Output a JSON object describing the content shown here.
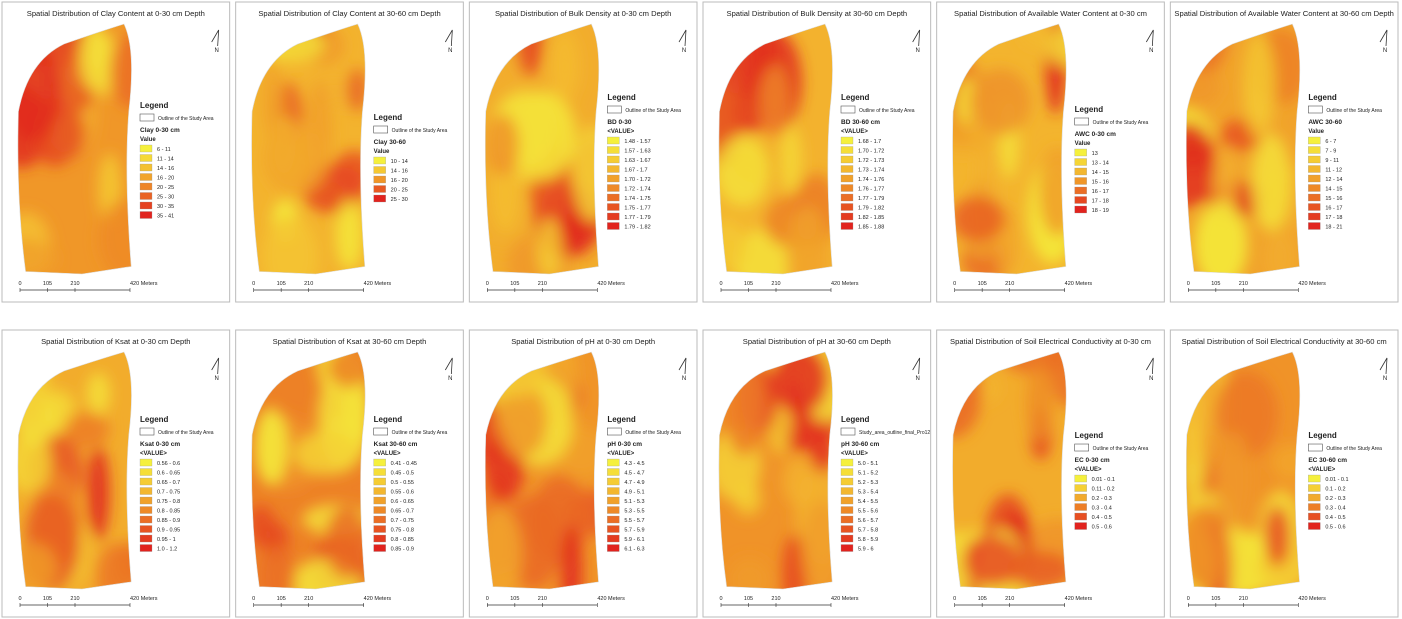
{
  "legend_heading": "Legend",
  "north_label": "N",
  "scale_labels": [
    "0",
    "105",
    "210",
    "420 Meters"
  ],
  "panels": [
    {
      "title": "Spatial Distribution of Clay Content at 0-30 cm Depth",
      "outline_label": "Outline of the Study Area",
      "layer": "Clay 0-30 cm",
      "value_header": "Value",
      "classes": [
        "6 - 11",
        "11 - 14",
        "14 - 16",
        "16 - 20",
        "20 - 25",
        "25 - 30",
        "30 - 35",
        "35 - 41"
      ]
    },
    {
      "title": "Spatial Distribution of Clay Content at 30-60 cm Depth",
      "outline_label": "Outline of the Study Area",
      "layer": "Clay 30-60",
      "value_header": "Value",
      "classes": [
        "10 - 14",
        "14 - 16",
        "16 - 20",
        "20 - 25",
        "25 - 30"
      ]
    },
    {
      "title": "Spatial Distribution of Bulk Density at 0-30 cm Depth",
      "outline_label": "Outline of the Study Area",
      "layer": "BD 0-30",
      "value_header": "<VALUE>",
      "classes": [
        "1.48 - 1.57",
        "1.57 - 1.63",
        "1.63 - 1.67",
        "1.67 - 1.7",
        "1.70 - 1.72",
        "1.72 - 1.74",
        "1.74 - 1.75",
        "1.75 - 1.77",
        "1.77 - 1.79",
        "1.79 - 1.82"
      ]
    },
    {
      "title": "Spatial Distribution of Bulk Density at 30-60 cm Depth",
      "outline_label": "Outline of the Study Area",
      "layer": "BD 30-60 cm",
      "value_header": "<VALUE>",
      "classes": [
        "1.68 - 1.7",
        "1.70 - 1.72",
        "1.72 - 1.73",
        "1.73 - 1.74",
        "1.74 - 1.76",
        "1.76 - 1.77",
        "1.77 - 1.79",
        "1.79 - 1.82",
        "1.82 - 1.85",
        "1.85 - 1.88"
      ]
    },
    {
      "title": "Spatial Distribution of Available Water Content at 0-30 cm",
      "outline_label": "Outline of the Study Area",
      "layer": "AWC 0-30 cm",
      "value_header": "Value",
      "classes": [
        "13",
        "13 - 14",
        "14 - 15",
        "15 - 16",
        "16 - 17",
        "17 - 18",
        "18 - 19"
      ]
    },
    {
      "title": "Spatial Distribution of Available Water Content at 30-60 cm Depth",
      "outline_label": "Outline of the Study Area",
      "layer": "AWC 30-60",
      "value_header": "Value",
      "classes": [
        "6 - 7",
        "7 - 9",
        "9 - 11",
        "11 - 12",
        "12 - 14",
        "14 - 15",
        "15 - 16",
        "16 - 17",
        "17 - 18",
        "18 - 21"
      ]
    },
    {
      "title": "Spatial Distribution of Ksat at 0-30 cm Depth",
      "outline_label": "Outline of the Study Area",
      "layer": "Ksat 0-30 cm",
      "value_header": "<VALUE>",
      "classes": [
        "0.56 - 0.6",
        "0.6 - 0.65",
        "0.65 - 0.7",
        "0.7 - 0.75",
        "0.75 - 0.8",
        "0.8 - 0.85",
        "0.85 - 0.9",
        "0.9 - 0.95",
        "0.95 - 1",
        "1.0 - 1.2"
      ]
    },
    {
      "title": "Spatial Distribution of Ksat at 30-60 cm Depth",
      "outline_label": "Outline of the Study Area",
      "layer": "Ksat 30-60 cm",
      "value_header": "<VALUE>",
      "classes": [
        "0.41 - 0.45",
        "0.45 - 0.5",
        "0.5 - 0.55",
        "0.55 - 0.6",
        "0.6 - 0.65",
        "0.65 - 0.7",
        "0.7 - 0.75",
        "0.75 - 0.8",
        "0.8 - 0.85",
        "0.85 - 0.9"
      ]
    },
    {
      "title": "Spatial Distribution of pH at 0-30 cm Depth",
      "outline_label": "Outline of the Study Area",
      "layer": "pH 0-30 cm",
      "value_header": "<VALUE>",
      "classes": [
        "4.3 - 4.5",
        "4.5 - 4.7",
        "4.7 - 4.9",
        "4.9 - 5.1",
        "5.1 - 5.3",
        "5.3 - 5.5",
        "5.5 - 5.7",
        "5.7 - 5.9",
        "5.9 - 6.1",
        "6.1 - 6.3"
      ]
    },
    {
      "title": "Spatial Distribution of pH at 30-60 cm Depth",
      "outline_label": "Study_area_outline_final_Pro12",
      "layer": "pH 30-60 cm",
      "value_header": "<VALUE>",
      "classes": [
        "5.0 - 5.1",
        "5.1 - 5.2",
        "5.2 - 5.3",
        "5.3 - 5.4",
        "5.4 - 5.5",
        "5.5 - 5.6",
        "5.6 - 5.7",
        "5.7 - 5.8",
        "5.8 - 5.9",
        "5.9 - 6"
      ]
    },
    {
      "title": "Spatial Distribution of Soil Electrical Conductivity at 0-30 cm",
      "outline_label": "Outline of the Study Area",
      "layer": "EC 0-30 cm",
      "value_header": "<VALUE>",
      "classes": [
        "0.01 - 0.1",
        "0.11 - 0.2",
        "0.2 - 0.3",
        "0.3 - 0.4",
        "0.4 - 0.5",
        "0.5 - 0.6"
      ]
    },
    {
      "title": "Spatial Distribution of Soil Electrical Conductivity at 30-60 cm",
      "outline_label": "Outline of the Study Area",
      "layer": "EC 30-60 cm",
      "value_header": "<VALUE>",
      "classes": [
        "0.01 - 0.1",
        "0.1 - 0.2",
        "0.2 - 0.3",
        "0.3 - 0.4",
        "0.4 - 0.5",
        "0.5 - 0.6"
      ]
    }
  ]
}
